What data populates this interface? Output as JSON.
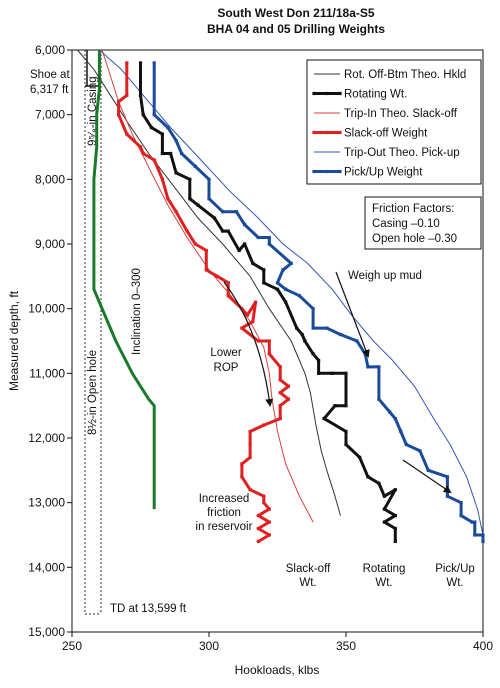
{
  "chart_data": {
    "type": "line",
    "title": "South West Don 211/18a-S5",
    "subtitle": "BHA 04 and 05 Drilling Weights",
    "xlabel": "Hookloads, klbs",
    "ylabel": "Measured depth, ft",
    "xlim": [
      250,
      400
    ],
    "ylim": [
      6000,
      15000
    ],
    "y_inverted": true,
    "x_ticks": [
      "250",
      "300",
      "350",
      "400"
    ],
    "y_ticks": [
      "6,000",
      "7,000",
      "8,000",
      "9,000",
      "10,000",
      "11,000",
      "12,000",
      "13,000",
      "14,000",
      "15,000"
    ],
    "grid": false,
    "legend_position": "top-right",
    "series": [
      {
        "name": "Rot. Off-Btm Theo. Hkld",
        "color": "#333333",
        "style": "thin",
        "points": [
          [
            252,
            6000
          ],
          [
            258,
            6300
          ],
          [
            264,
            6700
          ],
          [
            270,
            7100
          ],
          [
            278,
            7600
          ],
          [
            287,
            8100
          ],
          [
            296,
            8600
          ],
          [
            305,
            9000
          ],
          [
            315,
            9500
          ],
          [
            322,
            10000
          ],
          [
            330,
            10500
          ],
          [
            335,
            11000
          ],
          [
            337,
            11300
          ],
          [
            339,
            11800
          ],
          [
            341,
            12200
          ],
          [
            343,
            12500
          ],
          [
            346,
            12900
          ],
          [
            348,
            13200
          ]
        ]
      },
      {
        "name": "Rotating Wt.",
        "color": "#111111",
        "style": "bold",
        "markers": true,
        "points": [
          [
            275,
            6200
          ],
          [
            275,
            6700
          ],
          [
            276,
            7000
          ],
          [
            279,
            7200
          ],
          [
            283,
            7300
          ],
          [
            283,
            7600
          ],
          [
            286,
            7600
          ],
          [
            288,
            7900
          ],
          [
            293,
            8000
          ],
          [
            293,
            8300
          ],
          [
            296,
            8400
          ],
          [
            302,
            8600
          ],
          [
            305,
            8800
          ],
          [
            307,
            8800
          ],
          [
            311,
            9100
          ],
          [
            313,
            9000
          ],
          [
            316,
            9300
          ],
          [
            320,
            9400
          ],
          [
            320,
            9600
          ],
          [
            325,
            9700
          ],
          [
            328,
            9900
          ],
          [
            332,
            10300
          ],
          [
            334,
            10400
          ],
          [
            335,
            10500
          ],
          [
            338,
            10700
          ],
          [
            340,
            10800
          ],
          [
            340,
            11000
          ],
          [
            345,
            11000
          ],
          [
            350,
            11000
          ],
          [
            350,
            11500
          ],
          [
            346,
            11500
          ],
          [
            342,
            11700
          ],
          [
            350,
            11900
          ],
          [
            350,
            12100
          ],
          [
            355,
            12300
          ],
          [
            358,
            12600
          ],
          [
            362,
            12700
          ],
          [
            364,
            12900
          ],
          [
            368,
            12800
          ],
          [
            364,
            13100
          ],
          [
            368,
            13200
          ],
          [
            364,
            13300
          ],
          [
            368,
            13400
          ],
          [
            368,
            13600
          ]
        ]
      },
      {
        "name": "Trip-In Theo. Slack-off",
        "color": "#d94040",
        "style": "thin",
        "points": [
          [
            261,
            6000
          ],
          [
            264,
            6400
          ],
          [
            267,
            6800
          ],
          [
            272,
            7300
          ],
          [
            279,
            7900
          ],
          [
            285,
            8400
          ],
          [
            292,
            8900
          ],
          [
            300,
            9400
          ],
          [
            308,
            9800
          ],
          [
            315,
            10200
          ],
          [
            320,
            10600
          ],
          [
            322,
            11000
          ],
          [
            323,
            11400
          ],
          [
            325,
            11900
          ],
          [
            328,
            12400
          ],
          [
            333,
            12900
          ],
          [
            338,
            13300
          ]
        ]
      },
      {
        "name": "Slack-off Weight",
        "color": "#e02020",
        "style": "bold",
        "markers": true,
        "points": [
          [
            270,
            6200
          ],
          [
            270,
            6700
          ],
          [
            267,
            6800
          ],
          [
            267,
            7000
          ],
          [
            270,
            7300
          ],
          [
            275,
            7500
          ],
          [
            276,
            7600
          ],
          [
            280,
            7700
          ],
          [
            283,
            8000
          ],
          [
            285,
            8300
          ],
          [
            288,
            8500
          ],
          [
            292,
            8800
          ],
          [
            295,
            9000
          ],
          [
            299,
            9100
          ],
          [
            299,
            9400
          ],
          [
            303,
            9500
          ],
          [
            307,
            9600
          ],
          [
            307,
            9800
          ],
          [
            312,
            10000
          ],
          [
            314,
            10100
          ],
          [
            317,
            9900
          ],
          [
            316,
            10200
          ],
          [
            312,
            10300
          ],
          [
            318,
            10500
          ],
          [
            322,
            10500
          ],
          [
            322,
            10700
          ],
          [
            326,
            10900
          ],
          [
            326,
            11100
          ],
          [
            329,
            11200
          ],
          [
            326,
            11300
          ],
          [
            329,
            11400
          ],
          [
            326,
            11500
          ],
          [
            326,
            11700
          ],
          [
            320,
            11800
          ],
          [
            315,
            11900
          ],
          [
            315,
            12100
          ],
          [
            315,
            12300
          ],
          [
            312,
            12400
          ],
          [
            312,
            12600
          ],
          [
            315,
            12800
          ],
          [
            320,
            12900
          ],
          [
            320,
            13000
          ],
          [
            322,
            13100
          ],
          [
            318,
            13200
          ],
          [
            322,
            13300
          ],
          [
            318,
            13400
          ],
          [
            322,
            13500
          ],
          [
            318,
            13600
          ]
        ]
      },
      {
        "name": "Trip-Out Theo. Pick-up",
        "color": "#3355bb",
        "style": "thin",
        "points": [
          [
            260,
            6000
          ],
          [
            268,
            6300
          ],
          [
            276,
            6700
          ],
          [
            286,
            7200
          ],
          [
            297,
            7700
          ],
          [
            308,
            8200
          ],
          [
            318,
            8600
          ],
          [
            327,
            9000
          ],
          [
            336,
            9300
          ],
          [
            345,
            9700
          ],
          [
            352,
            10100
          ],
          [
            360,
            10500
          ],
          [
            367,
            10800
          ],
          [
            375,
            11200
          ],
          [
            382,
            11700
          ],
          [
            388,
            12100
          ],
          [
            394,
            12600
          ],
          [
            398,
            13100
          ],
          [
            400,
            13500
          ]
        ]
      },
      {
        "name": "Pick/Up Weight",
        "color": "#1a4a9a",
        "style": "bold",
        "markers": true,
        "points": [
          [
            280,
            6200
          ],
          [
            280,
            7000
          ],
          [
            285,
            7200
          ],
          [
            288,
            7400
          ],
          [
            290,
            7600
          ],
          [
            295,
            7800
          ],
          [
            300,
            8000
          ],
          [
            300,
            8300
          ],
          [
            305,
            8500
          ],
          [
            310,
            8500
          ],
          [
            313,
            8700
          ],
          [
            318,
            8900
          ],
          [
            322,
            8900
          ],
          [
            322,
            9000
          ],
          [
            330,
            9300
          ],
          [
            327,
            9400
          ],
          [
            325,
            9600
          ],
          [
            328,
            9700
          ],
          [
            333,
            9800
          ],
          [
            338,
            10000
          ],
          [
            338,
            10300
          ],
          [
            343,
            10300
          ],
          [
            348,
            10400
          ],
          [
            354,
            10500
          ],
          [
            357,
            10700
          ],
          [
            358,
            10900
          ],
          [
            362,
            10900
          ],
          [
            362,
            11400
          ],
          [
            366,
            11600
          ],
          [
            368,
            11700
          ],
          [
            370,
            11900
          ],
          [
            372,
            12100
          ],
          [
            377,
            12200
          ],
          [
            380,
            12500
          ],
          [
            387,
            12600
          ],
          [
            387,
            12900
          ],
          [
            392,
            13000
          ],
          [
            392,
            13200
          ],
          [
            396,
            13300
          ],
          [
            397,
            13300
          ],
          [
            397,
            13500
          ],
          [
            400,
            13500
          ],
          [
            400,
            13600
          ]
        ]
      },
      {
        "name": "Inclination 0-300",
        "color": "#1a7a2a",
        "style": "bold",
        "legend": false,
        "points": [
          [
            260,
            6000
          ],
          [
            260,
            6600
          ],
          [
            259,
            7000
          ],
          [
            259,
            7500
          ],
          [
            258,
            8000
          ],
          [
            258,
            8500
          ],
          [
            258,
            9000
          ],
          [
            258,
            9500
          ],
          [
            258,
            9700
          ],
          [
            261,
            10000
          ],
          [
            266,
            10500
          ],
          [
            272,
            11000
          ],
          [
            278,
            11400
          ],
          [
            280,
            11500
          ],
          [
            280,
            12000
          ],
          [
            280,
            13100
          ]
        ]
      }
    ],
    "annotations": {
      "shoe_line1": "Shoe at",
      "shoe_line2": "6,317 ft",
      "casing": "9⁵⁄₈-in Casing",
      "open_hole": "8½-in Open hole",
      "td": "TD at 13,599 ft",
      "inclination": "Inclination 0–300",
      "lower_rop_1": "Lower",
      "lower_rop_2": "ROP",
      "increased_1": "Increased",
      "increased_2": "friction",
      "increased_3": "in reservoir",
      "weigh_up": "Weigh up mud",
      "friction_title": "Friction Factors:",
      "friction_casing": "Casing –0.10",
      "friction_open": "Open hole –0.30",
      "slackoff_1": "Slack-off",
      "slackoff_2": "Wt.",
      "rotating_1": "Rotating",
      "rotating_2": "Wt.",
      "pickup_1": "Pick/Up",
      "pickup_2": "Wt."
    },
    "casing_depths": {
      "shoe": 6317,
      "td": 13599
    }
  }
}
